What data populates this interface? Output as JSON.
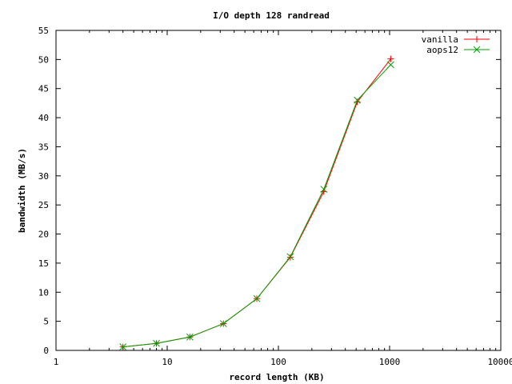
{
  "chart_data": {
    "type": "line",
    "title": "I/O depth 128 randread",
    "xlabel": "record length (KB)",
    "ylabel": "bandwidth (MB/s)",
    "x_scale": "log",
    "xlim": [
      1,
      10000
    ],
    "ylim": [
      0,
      55
    ],
    "x_ticks": [
      1,
      10,
      100,
      1000,
      10000
    ],
    "x_tick_labels": [
      "1",
      "10",
      "100",
      "1000",
      "10000"
    ],
    "y_ticks": [
      0,
      5,
      10,
      15,
      20,
      25,
      30,
      35,
      40,
      45,
      50,
      55
    ],
    "y_tick_labels": [
      "0",
      "5",
      "10",
      "15",
      "20",
      "25",
      "30",
      "35",
      "40",
      "45",
      "50",
      "55"
    ],
    "grid": false,
    "legend_position": "top-right",
    "x": [
      4,
      8,
      16,
      32,
      64,
      128,
      256,
      512,
      1024
    ],
    "series": [
      {
        "name": "vanilla",
        "color": "#ff0000",
        "marker": "plus",
        "values": [
          0.6,
          1.2,
          2.3,
          4.6,
          8.9,
          16.0,
          27.3,
          42.7,
          50.1
        ]
      },
      {
        "name": "aops12",
        "color": "#00a000",
        "marker": "cross",
        "values": [
          0.6,
          1.2,
          2.3,
          4.6,
          8.9,
          16.1,
          27.7,
          43.0,
          49.1
        ]
      }
    ]
  }
}
